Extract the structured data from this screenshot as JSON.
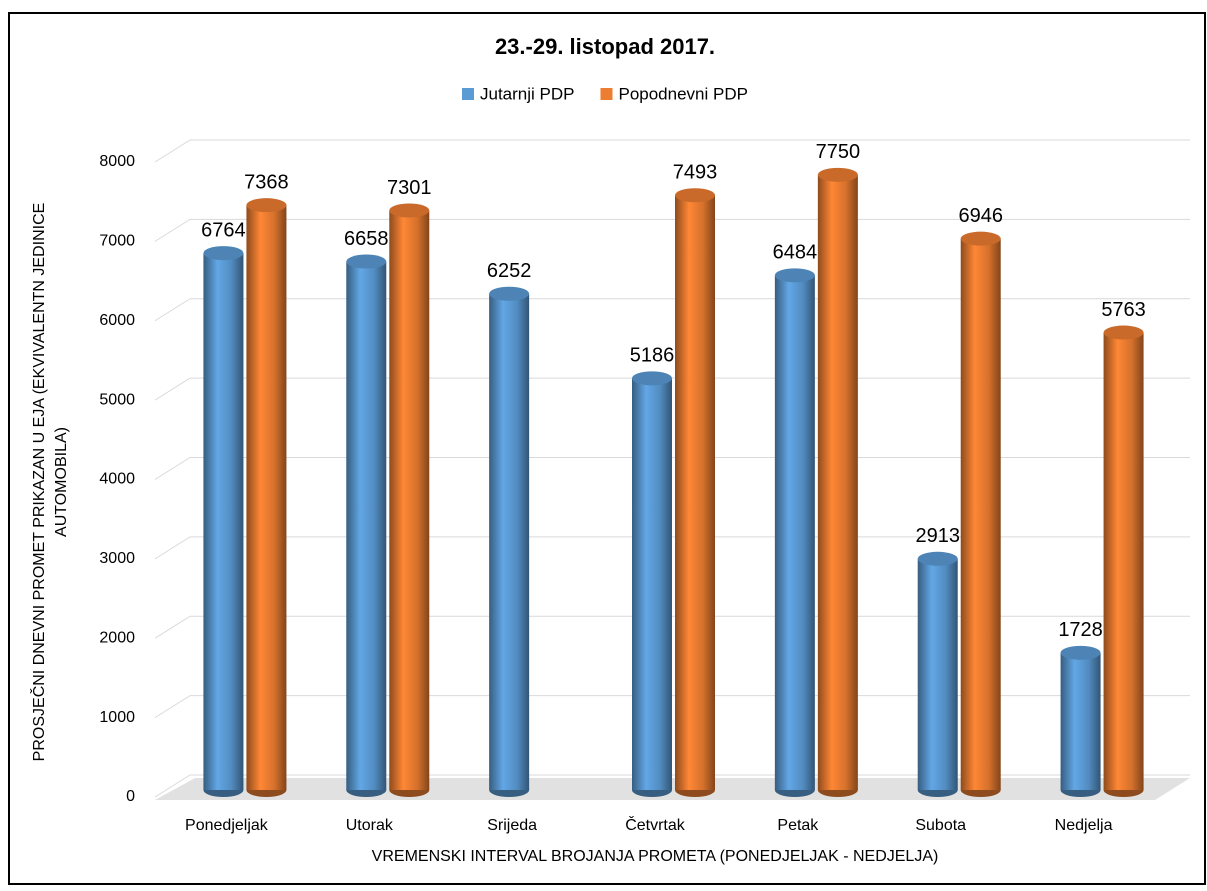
{
  "chart_data": {
    "type": "bar3d",
    "title": "23.-29. listopad 2017.",
    "xlabel": "VREMENSKI INTERVAL BROJANJA PROMETA (PONEDJELJAK - NEDJELJA)",
    "ylabel": [
      "PROSJEČNI DNEVNI PROMET PRIKAZAN U EJA (EKVIVALENTN JEDINICE",
      "AUTOMOBILA)"
    ],
    "categories": [
      "Ponedjeljak",
      "Utorak",
      "Srijeda",
      "Četvrtak",
      "Petak",
      "Subota",
      "Nedjelja"
    ],
    "series": [
      {
        "name": "Jutarnji PDP",
        "color": "#5b9bd5",
        "values": [
          6764,
          6658,
          6252,
          5186,
          6484,
          2913,
          1728
        ]
      },
      {
        "name": "Popodnevni PDP",
        "color": "#ed7d31",
        "values": [
          7368,
          7301,
          null,
          7493,
          7750,
          6946,
          5763
        ]
      }
    ],
    "ylim": [
      0,
      8000
    ],
    "yticks": [
      0,
      1000,
      2000,
      3000,
      4000,
      5000,
      6000,
      7000,
      8000
    ],
    "grid": true,
    "legend": "top"
  }
}
